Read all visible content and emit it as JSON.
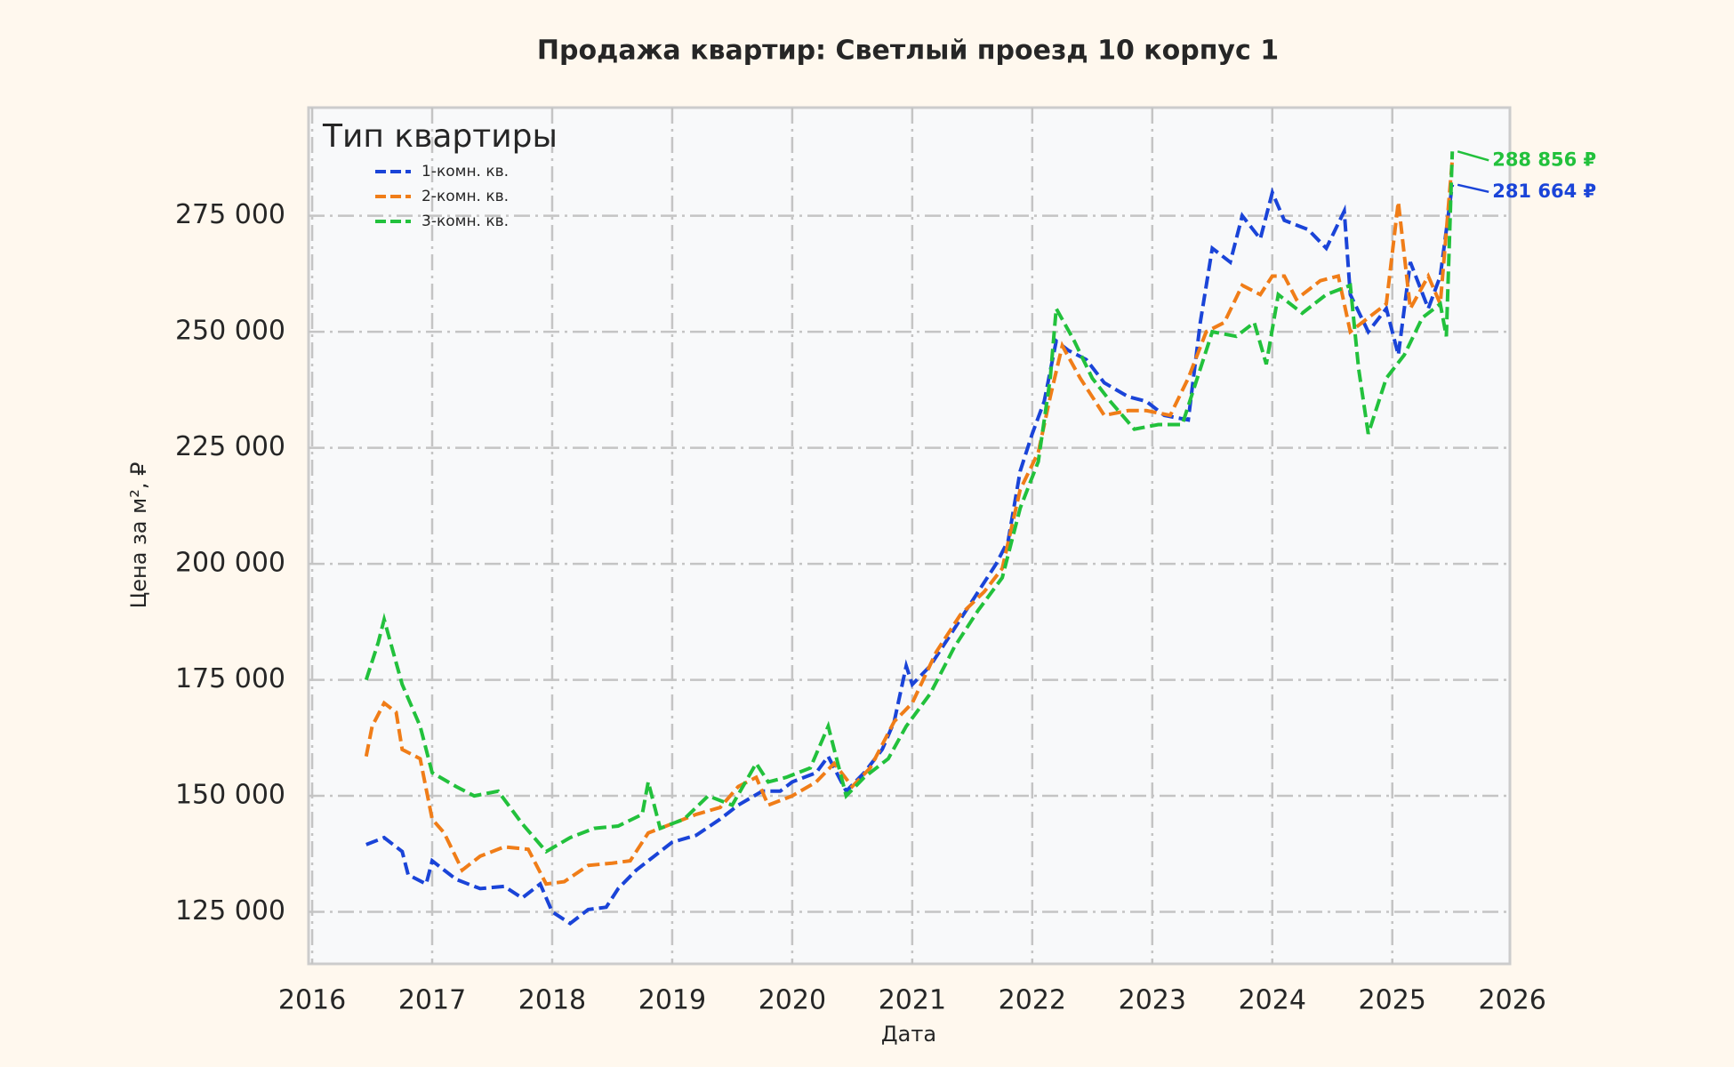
{
  "chart_data": {
    "type": "line",
    "title": "Продажа квартир: Светлый проезд 10 корпус 1",
    "x_label": "Дата",
    "y_label": "Цена за м², ₽",
    "legend_title": "Тип квартиры",
    "legend": "upper left",
    "grid": true,
    "xlim": [
      2015.97,
      2025.98
    ],
    "xticks": [
      2016,
      2017,
      2018,
      2019,
      2020,
      2021,
      2022,
      2023,
      2024,
      2025,
      2026
    ],
    "ylim": [
      113800,
      298300
    ],
    "yticks": [
      {
        "value": 125000,
        "label": "125 000"
      },
      {
        "value": 150000,
        "label": "150 000"
      },
      {
        "value": 175000,
        "label": "175 000"
      },
      {
        "value": 200000,
        "label": "200 000"
      },
      {
        "value": 225000,
        "label": "225 000"
      },
      {
        "value": 250000,
        "label": "250 000"
      },
      {
        "value": 275000,
        "label": "275 000"
      }
    ],
    "series": [
      {
        "name": "1-комн. кв.",
        "color": "#1a44d8",
        "x": [
          2016.45,
          2016.6,
          2016.75,
          2016.8,
          2016.95,
          2017.0,
          2017.2,
          2017.4,
          2017.6,
          2017.75,
          2017.9,
          2018.0,
          2018.15,
          2018.3,
          2018.45,
          2018.55,
          2018.7,
          2018.85,
          2019.0,
          2019.2,
          2019.4,
          2019.55,
          2019.75,
          2019.9,
          2020.0,
          2020.2,
          2020.3,
          2020.45,
          2020.6,
          2020.75,
          2020.85,
          2020.95,
          2021.0,
          2021.15,
          2021.3,
          2021.5,
          2021.7,
          2021.8,
          2021.9,
          2022.0,
          2022.1,
          2022.2,
          2022.3,
          2022.45,
          2022.6,
          2022.8,
          2022.95,
          2023.1,
          2023.3,
          2023.4,
          2023.5,
          2023.65,
          2023.75,
          2023.9,
          2024.0,
          2024.1,
          2024.3,
          2024.45,
          2024.6,
          2024.65,
          2024.8,
          2024.95,
          2025.05,
          2025.15,
          2025.3,
          2025.4,
          2025.5
        ],
        "values": [
          139500,
          141000,
          138000,
          133000,
          131000,
          136000,
          132000,
          130000,
          130500,
          128000,
          131000,
          125000,
          122500,
          125500,
          126000,
          130000,
          134000,
          137000,
          140000,
          141500,
          145000,
          148000,
          151000,
          151000,
          153000,
          155000,
          158500,
          151000,
          155000,
          160000,
          166000,
          178000,
          174000,
          178000,
          184000,
          192000,
          200000,
          205000,
          220000,
          228000,
          235000,
          248000,
          246000,
          244000,
          239000,
          236000,
          235000,
          232000,
          231000,
          252000,
          268000,
          265000,
          275000,
          270000,
          280000,
          274000,
          272000,
          268000,
          276000,
          258000,
          250000,
          255000,
          245000,
          265000,
          255000,
          262000,
          281664
        ]
      },
      {
        "name": "2-комн. кв.",
        "color": "#f07d18",
        "x": [
          2016.45,
          2016.5,
          2016.6,
          2016.7,
          2016.75,
          2016.9,
          2017.0,
          2017.1,
          2017.25,
          2017.4,
          2017.6,
          2017.8,
          2017.95,
          2018.1,
          2018.3,
          2018.5,
          2018.65,
          2018.8,
          2019.0,
          2019.2,
          2019.4,
          2019.55,
          2019.7,
          2019.8,
          2020.0,
          2020.2,
          2020.35,
          2020.5,
          2020.65,
          2020.85,
          2021.0,
          2021.2,
          2021.4,
          2021.6,
          2021.75,
          2021.9,
          2022.05,
          2022.15,
          2022.25,
          2022.4,
          2022.6,
          2022.8,
          2022.95,
          2023.15,
          2023.3,
          2023.45,
          2023.6,
          2023.75,
          2023.9,
          2024.0,
          2024.1,
          2024.2,
          2024.4,
          2024.55,
          2024.65,
          2024.8,
          2024.95,
          2025.05,
          2025.15,
          2025.3,
          2025.4,
          2025.5
        ],
        "values": [
          158500,
          165000,
          170000,
          168000,
          160000,
          158000,
          145000,
          142000,
          134000,
          137000,
          139000,
          138500,
          131000,
          131500,
          135000,
          135500,
          136000,
          142000,
          144000,
          146000,
          147500,
          152000,
          154000,
          148000,
          150000,
          153000,
          157000,
          152000,
          156000,
          166000,
          170000,
          181000,
          189000,
          194000,
          199000,
          216000,
          224000,
          236000,
          247000,
          240000,
          232000,
          233000,
          233000,
          232000,
          240000,
          250000,
          252000,
          260000,
          258000,
          262000,
          262000,
          257000,
          261000,
          262000,
          250000,
          253000,
          256000,
          278000,
          255000,
          262000,
          256000,
          287000
        ]
      },
      {
        "name": "3-комн. кв.",
        "color": "#22c13c",
        "x": [
          2016.45,
          2016.55,
          2016.6,
          2016.75,
          2016.9,
          2017.0,
          2017.2,
          2017.35,
          2017.55,
          2017.75,
          2017.95,
          2018.15,
          2018.35,
          2018.55,
          2018.75,
          2018.8,
          2018.9,
          2019.1,
          2019.3,
          2019.5,
          2019.7,
          2019.8,
          2019.95,
          2020.15,
          2020.3,
          2020.45,
          2020.6,
          2020.8,
          2020.95,
          2021.15,
          2021.35,
          2021.55,
          2021.75,
          2021.9,
          2022.05,
          2022.15,
          2022.2,
          2022.35,
          2022.5,
          2022.65,
          2022.85,
          2023.05,
          2023.25,
          2023.4,
          2023.5,
          2023.7,
          2023.85,
          2023.95,
          2024.05,
          2024.25,
          2024.45,
          2024.65,
          2024.72,
          2024.8,
          2024.95,
          2025.1,
          2025.25,
          2025.4,
          2025.45,
          2025.5
        ],
        "values": [
          175000,
          183000,
          188000,
          174000,
          165000,
          155000,
          152000,
          150000,
          151000,
          144000,
          138000,
          141000,
          143000,
          143500,
          146000,
          153000,
          143000,
          145000,
          150000,
          148000,
          157000,
          153000,
          154000,
          156000,
          165000,
          150000,
          154000,
          158000,
          165000,
          172000,
          182000,
          190000,
          197000,
          212000,
          222000,
          240000,
          255000,
          248000,
          240000,
          235000,
          229000,
          230000,
          230000,
          242000,
          250000,
          249000,
          252000,
          243000,
          258000,
          254000,
          258000,
          260000,
          242000,
          228000,
          240000,
          245000,
          253000,
          256000,
          249000,
          288856
        ]
      }
    ],
    "annotations": [
      {
        "text": "281 664 ₽",
        "color": "#1a44d8",
        "x": 2025.5,
        "y": 281664
      },
      {
        "text": "288 856 ₽",
        "color": "#22c13c",
        "x": 2025.5,
        "y": 288856
      }
    ]
  }
}
